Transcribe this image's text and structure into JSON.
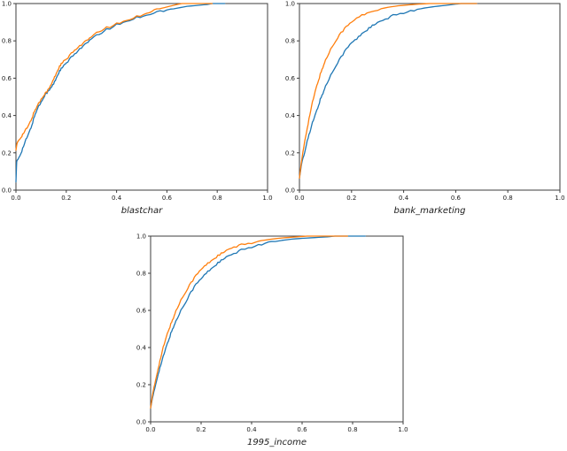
{
  "page": {
    "background": "#ffffff",
    "description": "Figure with three empirical CDF-style line plots comparing two curves per dataset"
  },
  "palette": {
    "series_blue": "#1f77b4",
    "series_orange": "#ff7f0e",
    "axis": "#3d3d3d",
    "text": "#1a1a1a"
  },
  "chart_data": [
    {
      "type": "line",
      "title": "blastchar",
      "xlabel": "blastchar",
      "ylabel": "",
      "xlim": [
        0,
        1
      ],
      "ylim": [
        0,
        1
      ],
      "grid": false,
      "legend": null,
      "xticks": [
        "0.0",
        "0.2",
        "0.4",
        "0.6",
        "0.8",
        "1.0"
      ],
      "yticks": [
        "0.0",
        "0.2",
        "0.4",
        "0.6",
        "0.8",
        "1.0"
      ],
      "series": [
        {
          "name": "curve-blue",
          "color": "#1f77b4",
          "points": [
            [
              0.0,
              0.05
            ],
            [
              0.003,
              0.15
            ],
            [
              0.01,
              0.17
            ],
            [
              0.02,
              0.2
            ],
            [
              0.03,
              0.235
            ],
            [
              0.04,
              0.27
            ],
            [
              0.05,
              0.3
            ],
            [
              0.06,
              0.335
            ],
            [
              0.07,
              0.38
            ],
            [
              0.08,
              0.42
            ],
            [
              0.09,
              0.45
            ],
            [
              0.1,
              0.47
            ],
            [
              0.11,
              0.5
            ],
            [
              0.12,
              0.52
            ],
            [
              0.13,
              0.53
            ],
            [
              0.14,
              0.55
            ],
            [
              0.15,
              0.57
            ],
            [
              0.16,
              0.6
            ],
            [
              0.17,
              0.63
            ],
            [
              0.18,
              0.65
            ],
            [
              0.19,
              0.665
            ],
            [
              0.2,
              0.68
            ],
            [
              0.22,
              0.71
            ],
            [
              0.24,
              0.74
            ],
            [
              0.26,
              0.765
            ],
            [
              0.28,
              0.785
            ],
            [
              0.3,
              0.81
            ],
            [
              0.33,
              0.835
            ],
            [
              0.36,
              0.86
            ],
            [
              0.4,
              0.885
            ],
            [
              0.44,
              0.905
            ],
            [
              0.48,
              0.925
            ],
            [
              0.52,
              0.94
            ],
            [
              0.56,
              0.955
            ],
            [
              0.6,
              0.965
            ],
            [
              0.64,
              0.975
            ],
            [
              0.68,
              0.985
            ],
            [
              0.72,
              0.99
            ],
            [
              0.76,
              0.995
            ],
            [
              0.78,
              1.0
            ],
            [
              0.83,
              1.0
            ]
          ]
        },
        {
          "name": "curve-orange",
          "color": "#ff7f0e",
          "points": [
            [
              0.0,
              0.22
            ],
            [
              0.005,
              0.25
            ],
            [
              0.01,
              0.265
            ],
            [
              0.02,
              0.285
            ],
            [
              0.03,
              0.305
            ],
            [
              0.04,
              0.325
            ],
            [
              0.05,
              0.345
            ],
            [
              0.06,
              0.375
            ],
            [
              0.07,
              0.41
            ],
            [
              0.08,
              0.44
            ],
            [
              0.09,
              0.465
            ],
            [
              0.1,
              0.485
            ],
            [
              0.11,
              0.51
            ],
            [
              0.12,
              0.525
            ],
            [
              0.13,
              0.54
            ],
            [
              0.14,
              0.565
            ],
            [
              0.15,
              0.595
            ],
            [
              0.16,
              0.625
            ],
            [
              0.17,
              0.655
            ],
            [
              0.18,
              0.675
            ],
            [
              0.19,
              0.69
            ],
            [
              0.2,
              0.7
            ],
            [
              0.22,
              0.73
            ],
            [
              0.24,
              0.76
            ],
            [
              0.26,
              0.78
            ],
            [
              0.28,
              0.8
            ],
            [
              0.3,
              0.82
            ],
            [
              0.33,
              0.85
            ],
            [
              0.36,
              0.87
            ],
            [
              0.4,
              0.89
            ],
            [
              0.44,
              0.91
            ],
            [
              0.48,
              0.93
            ],
            [
              0.52,
              0.95
            ],
            [
              0.55,
              0.965
            ],
            [
              0.58,
              0.975
            ],
            [
              0.61,
              0.985
            ],
            [
              0.64,
              0.995
            ],
            [
              0.66,
              1.0
            ],
            [
              0.78,
              1.0
            ]
          ]
        }
      ]
    },
    {
      "type": "line",
      "title": "bank_marketing",
      "xlabel": "bank_marketing",
      "ylabel": "",
      "xlim": [
        0,
        1
      ],
      "ylim": [
        0,
        1
      ],
      "grid": false,
      "legend": null,
      "xticks": [
        "0.0",
        "0.2",
        "0.4",
        "0.6",
        "0.8",
        "1.0"
      ],
      "yticks": [
        "0.0",
        "0.2",
        "0.4",
        "0.6",
        "0.8",
        "1.0"
      ],
      "series": [
        {
          "name": "curve-blue",
          "color": "#1f77b4",
          "points": [
            [
              0.0,
              0.07
            ],
            [
              0.01,
              0.15
            ],
            [
              0.02,
              0.2
            ],
            [
              0.03,
              0.27
            ],
            [
              0.04,
              0.31
            ],
            [
              0.05,
              0.36
            ],
            [
              0.06,
              0.4
            ],
            [
              0.07,
              0.44
            ],
            [
              0.08,
              0.485
            ],
            [
              0.09,
              0.52
            ],
            [
              0.1,
              0.555
            ],
            [
              0.12,
              0.615
            ],
            [
              0.14,
              0.67
            ],
            [
              0.16,
              0.715
            ],
            [
              0.18,
              0.755
            ],
            [
              0.2,
              0.79
            ],
            [
              0.22,
              0.81
            ],
            [
              0.24,
              0.84
            ],
            [
              0.26,
              0.86
            ],
            [
              0.28,
              0.88
            ],
            [
              0.3,
              0.895
            ],
            [
              0.33,
              0.915
            ],
            [
              0.36,
              0.935
            ],
            [
              0.4,
              0.952
            ],
            [
              0.44,
              0.965
            ],
            [
              0.48,
              0.976
            ],
            [
              0.52,
              0.984
            ],
            [
              0.56,
              0.99
            ],
            [
              0.6,
              0.997
            ],
            [
              0.62,
              1.0
            ],
            [
              0.68,
              1.0
            ]
          ]
        },
        {
          "name": "curve-orange",
          "color": "#ff7f0e",
          "points": [
            [
              0.0,
              0.07
            ],
            [
              0.01,
              0.17
            ],
            [
              0.02,
              0.26
            ],
            [
              0.03,
              0.335
            ],
            [
              0.04,
              0.405
            ],
            [
              0.05,
              0.47
            ],
            [
              0.06,
              0.525
            ],
            [
              0.07,
              0.575
            ],
            [
              0.08,
              0.62
            ],
            [
              0.09,
              0.66
            ],
            [
              0.1,
              0.695
            ],
            [
              0.12,
              0.755
            ],
            [
              0.14,
              0.805
            ],
            [
              0.16,
              0.845
            ],
            [
              0.18,
              0.875
            ],
            [
              0.2,
              0.9
            ],
            [
              0.23,
              0.93
            ],
            [
              0.26,
              0.95
            ],
            [
              0.3,
              0.968
            ],
            [
              0.34,
              0.98
            ],
            [
              0.38,
              0.988
            ],
            [
              0.42,
              0.993
            ],
            [
              0.46,
              0.997
            ],
            [
              0.5,
              1.0
            ],
            [
              0.68,
              1.0
            ]
          ]
        }
      ]
    },
    {
      "type": "line",
      "title": "1995_income",
      "xlabel": "1995_income",
      "ylabel": "",
      "xlim": [
        0,
        1
      ],
      "ylim": [
        0,
        1
      ],
      "grid": false,
      "legend": null,
      "xticks": [
        "0.0",
        "0.2",
        "0.4",
        "0.6",
        "0.8",
        "1.0"
      ],
      "yticks": [
        "0.0",
        "0.2",
        "0.4",
        "0.6",
        "0.8",
        "1.0"
      ],
      "series": [
        {
          "name": "curve-blue",
          "color": "#1f77b4",
          "points": [
            [
              0.0,
              0.08
            ],
            [
              0.01,
              0.14
            ],
            [
              0.02,
              0.2
            ],
            [
              0.03,
              0.26
            ],
            [
              0.04,
              0.305
            ],
            [
              0.05,
              0.35
            ],
            [
              0.06,
              0.395
            ],
            [
              0.07,
              0.435
            ],
            [
              0.08,
              0.475
            ],
            [
              0.09,
              0.51
            ],
            [
              0.1,
              0.54
            ],
            [
              0.12,
              0.6
            ],
            [
              0.14,
              0.65
            ],
            [
              0.16,
              0.7
            ],
            [
              0.18,
              0.74
            ],
            [
              0.2,
              0.77
            ],
            [
              0.22,
              0.8
            ],
            [
              0.24,
              0.825
            ],
            [
              0.26,
              0.848
            ],
            [
              0.28,
              0.868
            ],
            [
              0.3,
              0.885
            ],
            [
              0.33,
              0.905
            ],
            [
              0.36,
              0.924
            ],
            [
              0.4,
              0.943
            ],
            [
              0.44,
              0.957
            ],
            [
              0.48,
              0.968
            ],
            [
              0.52,
              0.977
            ],
            [
              0.56,
              0.984
            ],
            [
              0.6,
              0.988
            ],
            [
              0.65,
              0.992
            ],
            [
              0.7,
              0.996
            ],
            [
              0.73,
              1.0
            ],
            [
              0.85,
              1.0
            ]
          ]
        },
        {
          "name": "curve-orange",
          "color": "#ff7f0e",
          "points": [
            [
              0.0,
              0.08
            ],
            [
              0.01,
              0.16
            ],
            [
              0.02,
              0.225
            ],
            [
              0.03,
              0.29
            ],
            [
              0.04,
              0.345
            ],
            [
              0.05,
              0.4
            ],
            [
              0.06,
              0.445
            ],
            [
              0.07,
              0.49
            ],
            [
              0.08,
              0.525
            ],
            [
              0.09,
              0.56
            ],
            [
              0.1,
              0.595
            ],
            [
              0.12,
              0.655
            ],
            [
              0.14,
              0.705
            ],
            [
              0.16,
              0.75
            ],
            [
              0.18,
              0.788
            ],
            [
              0.2,
              0.82
            ],
            [
              0.22,
              0.845
            ],
            [
              0.24,
              0.868
            ],
            [
              0.26,
              0.888
            ],
            [
              0.28,
              0.905
            ],
            [
              0.3,
              0.92
            ],
            [
              0.33,
              0.94
            ],
            [
              0.36,
              0.952
            ],
            [
              0.4,
              0.965
            ],
            [
              0.44,
              0.976
            ],
            [
              0.48,
              0.984
            ],
            [
              0.52,
              0.99
            ],
            [
              0.56,
              0.994
            ],
            [
              0.62,
              1.0
            ],
            [
              0.78,
              1.0
            ]
          ]
        }
      ]
    }
  ]
}
